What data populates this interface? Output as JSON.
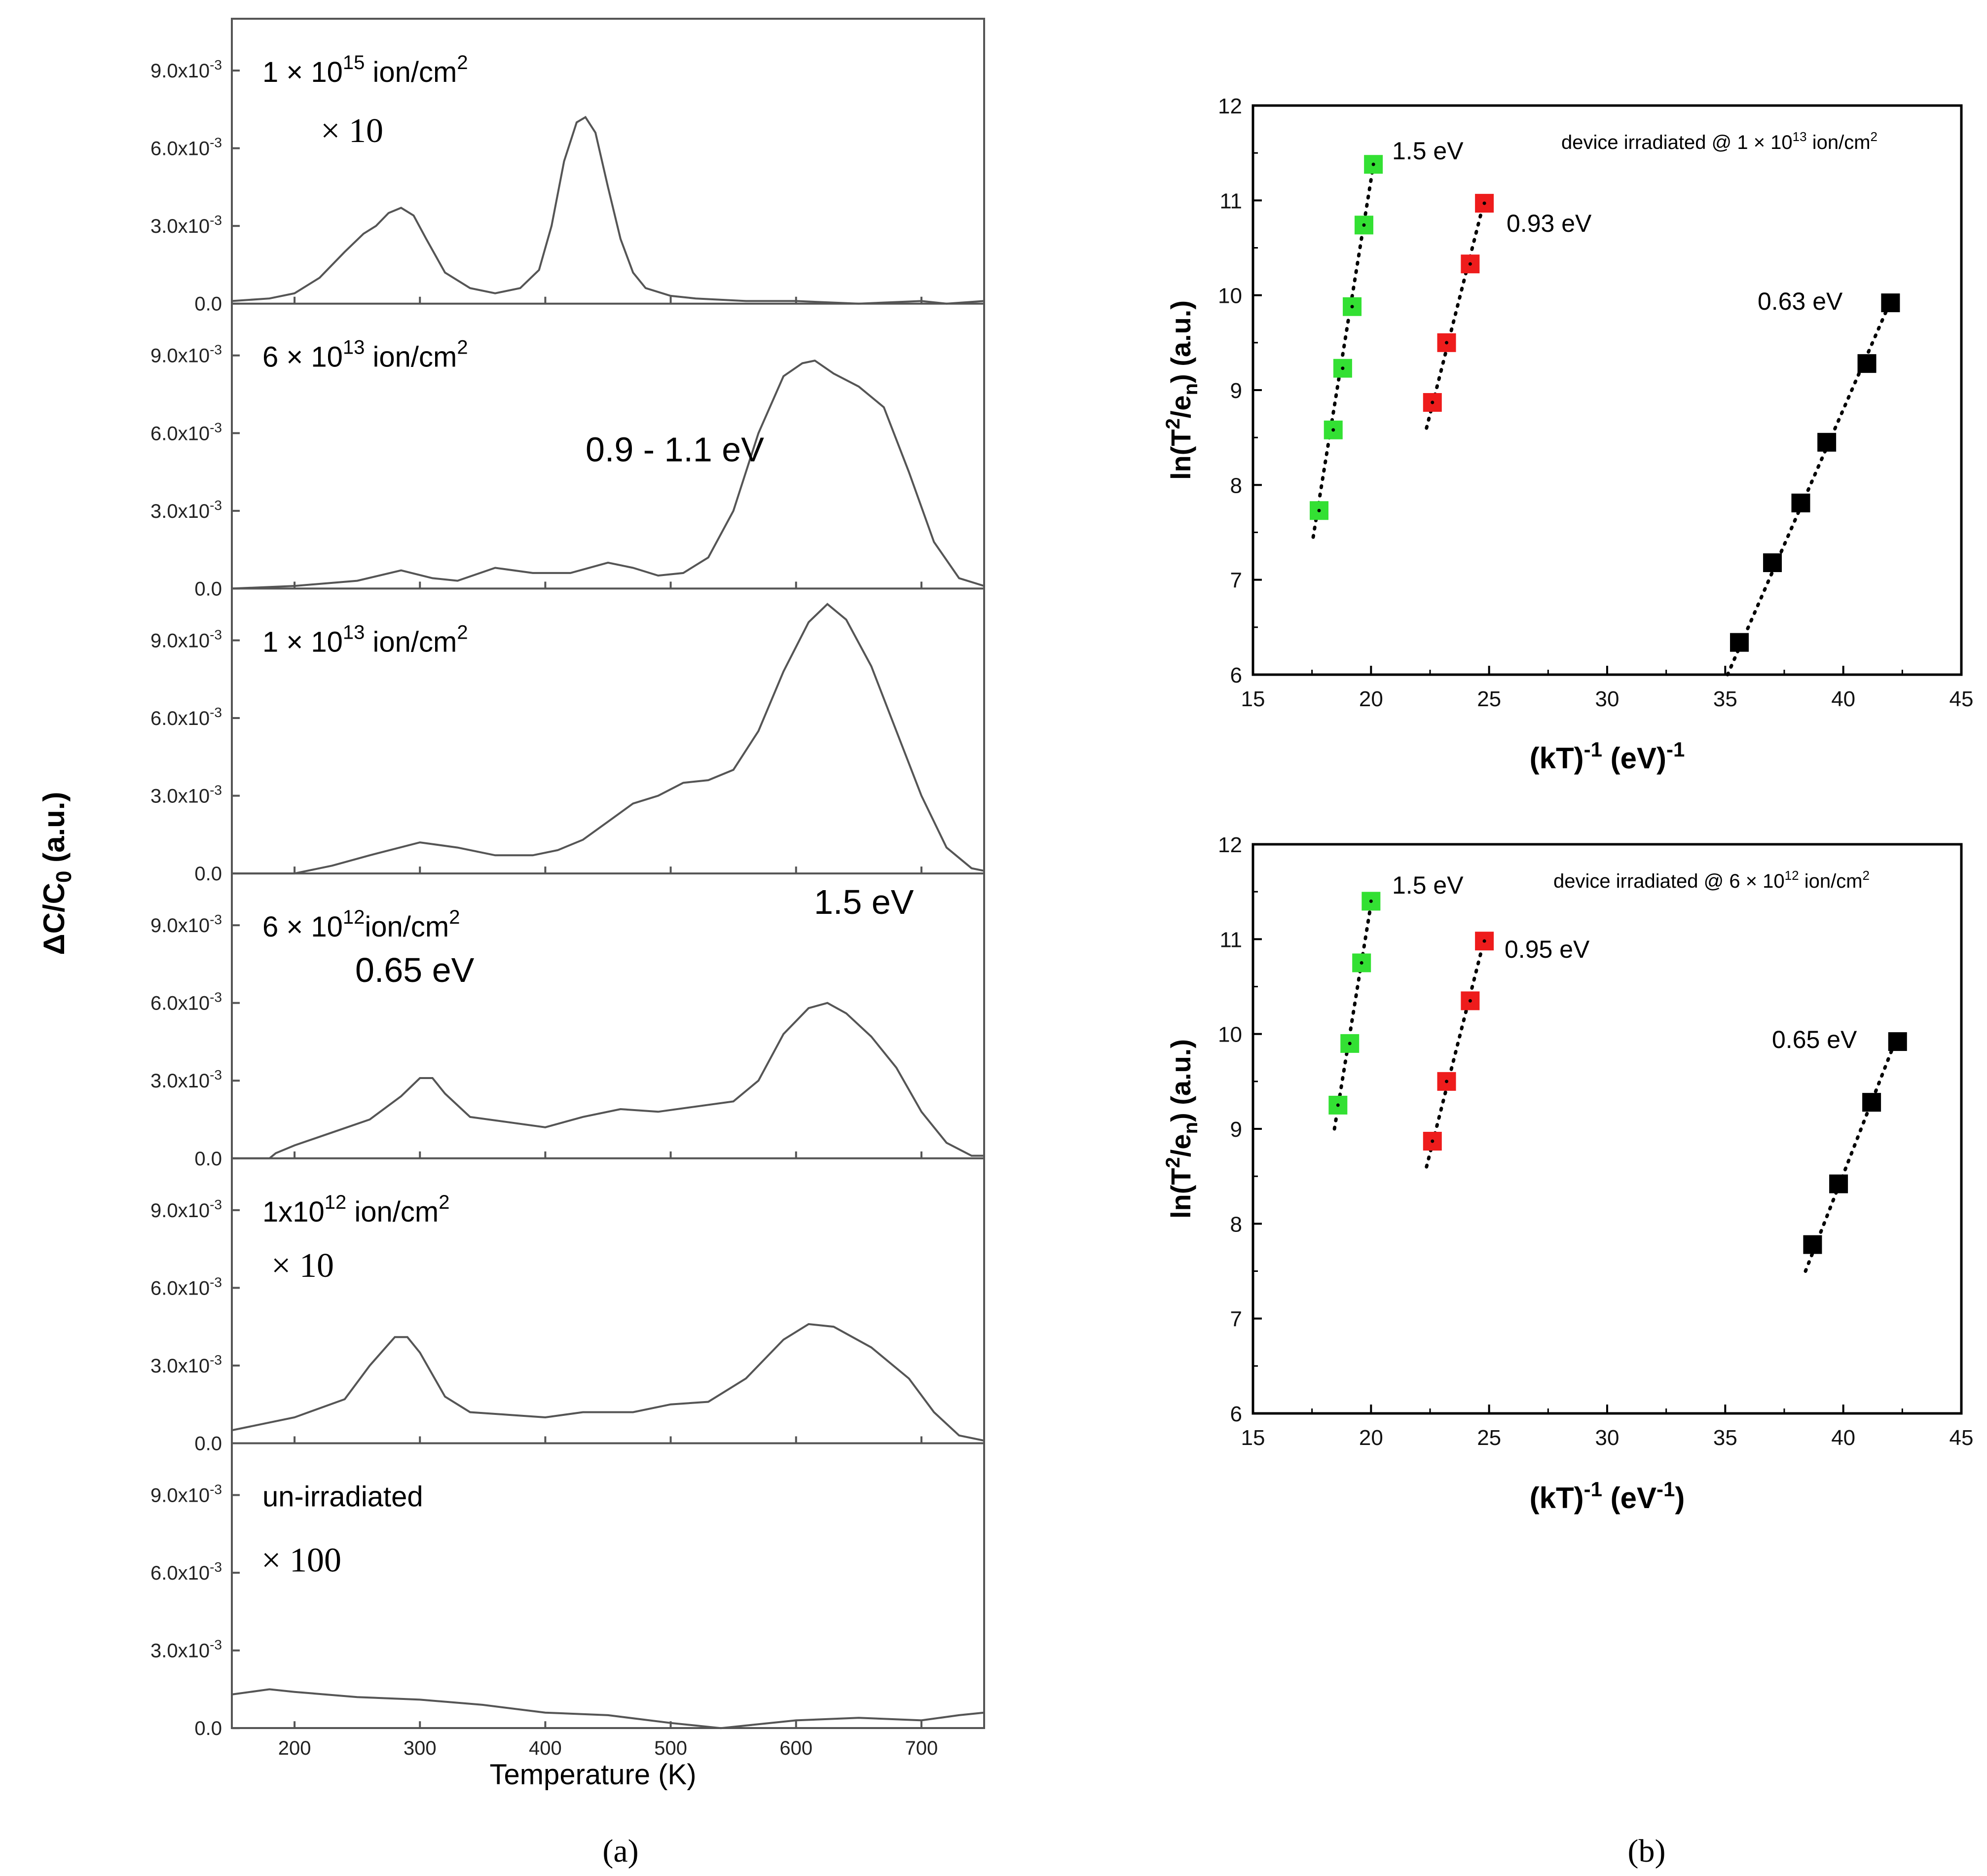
{
  "chart_data": [
    {
      "type": "line",
      "panel": "(a)",
      "xlabel": "Temperature (K)",
      "ylabel": "ΔC/C0 (a.u.)",
      "xlim": [
        150,
        750
      ],
      "ylim": [
        0,
        0.011
      ],
      "x_ticks": [
        "200",
        "300",
        "400",
        "500",
        "600",
        "700"
      ],
      "y_ticks": [
        "0.0",
        "3.0x10-3",
        "6.0x10-3",
        "9.0x10-3"
      ],
      "y_tick_values": [
        0,
        0.003,
        0.006,
        0.009
      ],
      "subplots": [
        {
          "label_parts": [
            "1 × 10",
            "15",
            " ion/cm",
            "2"
          ],
          "annotations": [
            "× 10"
          ],
          "series": [
            {
              "name": "1 × 10^15 ion/cm^2",
              "x": [
                150,
                180,
                200,
                220,
                240,
                255,
                265,
                275,
                285,
                295,
                305,
                320,
                340,
                360,
                380,
                395,
                405,
                415,
                425,
                432,
                440,
                450,
                460,
                470,
                480,
                500,
                520,
                560,
                600,
                650,
                700,
                720,
                750
              ],
              "y": [
                0.0001,
                0.0002,
                0.0004,
                0.001,
                0.002,
                0.0027,
                0.003,
                0.0035,
                0.0037,
                0.0034,
                0.0025,
                0.0012,
                0.0006,
                0.0004,
                0.0006,
                0.0013,
                0.003,
                0.0055,
                0.007,
                0.0072,
                0.0066,
                0.0045,
                0.0025,
                0.0012,
                0.0006,
                0.0003,
                0.0002,
                0.0001,
                0.0001,
                0.0,
                0.0001,
                0.0,
                0.0001
              ]
            }
          ]
        },
        {
          "label_parts": [
            "6 × 10",
            "13",
            " ion/cm",
            "2"
          ],
          "annotations": [
            "0.9 - 1.1 eV"
          ],
          "series": [
            {
              "name": "6 × 10^13 ion/cm^2",
              "x": [
                150,
                200,
                250,
                285,
                310,
                330,
                360,
                390,
                420,
                450,
                470,
                490,
                510,
                530,
                550,
                570,
                590,
                605,
                615,
                630,
                650,
                670,
                690,
                710,
                730,
                750
              ],
              "y": [
                0.0,
                0.0001,
                0.0003,
                0.0007,
                0.0004,
                0.0003,
                0.0008,
                0.0006,
                0.0006,
                0.001,
                0.0008,
                0.0005,
                0.0006,
                0.0012,
                0.003,
                0.006,
                0.0082,
                0.0087,
                0.0088,
                0.0083,
                0.0078,
                0.007,
                0.0045,
                0.0018,
                0.0004,
                0.0001
              ]
            }
          ]
        },
        {
          "label_parts": [
            "1 × 10",
            "13",
            " ion/cm",
            "2"
          ],
          "annotations": [],
          "series": [
            {
              "name": "1 × 10^13 ion/cm^2",
              "x": [
                150,
                200,
                230,
                260,
                300,
                330,
                360,
                390,
                410,
                430,
                450,
                470,
                490,
                510,
                530,
                550,
                570,
                590,
                610,
                625,
                640,
                660,
                680,
                700,
                720,
                740,
                750
              ],
              "y": [
                0.0,
                0.0,
                0.0003,
                0.0007,
                0.0012,
                0.001,
                0.0007,
                0.0007,
                0.0009,
                0.0013,
                0.002,
                0.0027,
                0.003,
                0.0035,
                0.0036,
                0.004,
                0.0055,
                0.0078,
                0.0097,
                0.0104,
                0.0098,
                0.008,
                0.0055,
                0.003,
                0.001,
                0.0002,
                0.0001
              ]
            }
          ]
        },
        {
          "label_parts": [
            "6 × 10",
            "12",
            "ion/cm",
            "2"
          ],
          "annotations": [
            "0.65 eV",
            "1.5 eV"
          ],
          "series": [
            {
              "name": "6 × 10^12 ion/cm^2",
              "x": [
                150,
                180,
                185,
                200,
                230,
                260,
                285,
                300,
                310,
                320,
                340,
                370,
                400,
                430,
                460,
                490,
                520,
                550,
                570,
                590,
                610,
                625,
                640,
                660,
                680,
                700,
                720,
                740,
                750
              ],
              "y": [
                0.0,
                0.0,
                0.0002,
                0.0005,
                0.001,
                0.0015,
                0.0024,
                0.0031,
                0.0031,
                0.0025,
                0.0016,
                0.0014,
                0.0012,
                0.0016,
                0.0019,
                0.0018,
                0.002,
                0.0022,
                0.003,
                0.0048,
                0.0058,
                0.006,
                0.0056,
                0.0047,
                0.0035,
                0.0018,
                0.0006,
                0.0001,
                0.0001
              ]
            }
          ]
        },
        {
          "label_parts": [
            "1x10",
            "12",
            " ion/cm",
            "2"
          ],
          "annotations": [
            "× 10"
          ],
          "series": [
            {
              "name": "1x10^12 ion/cm^2",
              "x": [
                150,
                200,
                240,
                260,
                280,
                290,
                300,
                320,
                340,
                370,
                400,
                430,
                470,
                500,
                530,
                560,
                590,
                610,
                630,
                660,
                690,
                710,
                730,
                750
              ],
              "y": [
                0.0005,
                0.001,
                0.0017,
                0.003,
                0.0041,
                0.0041,
                0.0035,
                0.0018,
                0.0012,
                0.0011,
                0.001,
                0.0012,
                0.0012,
                0.0015,
                0.0016,
                0.0025,
                0.004,
                0.0046,
                0.0045,
                0.0037,
                0.0025,
                0.0012,
                0.0003,
                0.0001
              ]
            }
          ]
        },
        {
          "label_parts": [
            "un-irradiated"
          ],
          "annotations": [
            "× 100"
          ],
          "series": [
            {
              "name": "un-irradiated",
              "x": [
                150,
                180,
                200,
                250,
                300,
                350,
                400,
                450,
                500,
                520,
                540,
                560,
                600,
                650,
                700,
                730,
                750
              ],
              "y": [
                0.0013,
                0.0015,
                0.0014,
                0.0012,
                0.0011,
                0.0009,
                0.0006,
                0.0005,
                0.0002,
                0.0001,
                0.0,
                0.0001,
                0.0003,
                0.0004,
                0.0003,
                0.0005,
                0.0006
              ]
            }
          ]
        }
      ]
    },
    {
      "type": "scatter",
      "panel": "(b)",
      "title": [
        "device irradiated @ 1 × 10",
        "13",
        " ion/cm",
        "2"
      ],
      "xlabel": [
        "(kT)",
        "-1",
        " (eV)",
        "-1"
      ],
      "ylabel": [
        "ln(T",
        "2",
        "/e",
        "n",
        ") (a.u.)"
      ],
      "xlim": [
        15,
        45
      ],
      "ylim": [
        6,
        12
      ],
      "x_ticks": [
        "15",
        "20",
        "25",
        "30",
        "35",
        "40",
        "45"
      ],
      "y_ticks": [
        "6",
        "7",
        "8",
        "9",
        "10",
        "11",
        "12"
      ],
      "series": [
        {
          "name": "1.5 eV",
          "color": "#33e033",
          "x": [
            17.8,
            18.4,
            18.8,
            19.2,
            19.7,
            20.1
          ],
          "y": [
            7.73,
            8.58,
            9.23,
            9.88,
            10.74,
            11.38
          ]
        },
        {
          "name": "0.93 eV",
          "color": "#ee1c1c",
          "x": [
            22.6,
            23.2,
            24.2,
            24.8
          ],
          "y": [
            8.87,
            9.5,
            10.33,
            10.97
          ]
        },
        {
          "name": "0.63 eV",
          "color": "#000000",
          "x": [
            35.6,
            37.0,
            38.2,
            39.3,
            41.0,
            42.0
          ],
          "y": [
            6.34,
            7.18,
            7.81,
            8.45,
            9.28,
            9.92
          ]
        }
      ]
    },
    {
      "type": "scatter",
      "panel": "(b)",
      "title": [
        "device irradiated @ 6 × 10",
        "12",
        " ion/cm",
        "2"
      ],
      "xlabel": [
        "(kT)",
        "-1",
        " (eV",
        "-1",
        ")"
      ],
      "ylabel": [
        "ln(T",
        "2",
        "/e",
        "n",
        ") (a.u.)"
      ],
      "xlim": [
        15,
        45
      ],
      "ylim": [
        6,
        12
      ],
      "x_ticks": [
        "15",
        "20",
        "25",
        "30",
        "35",
        "40",
        "45"
      ],
      "y_ticks": [
        "6",
        "7",
        "8",
        "9",
        "10",
        "11",
        "12"
      ],
      "series": [
        {
          "name": "1.5 eV",
          "color": "#33e033",
          "x": [
            18.6,
            19.1,
            19.6,
            20.0
          ],
          "y": [
            9.25,
            9.9,
            10.75,
            11.4
          ]
        },
        {
          "name": "0.95 eV",
          "color": "#ee1c1c",
          "x": [
            22.6,
            23.2,
            24.2,
            24.8
          ],
          "y": [
            8.87,
            9.5,
            10.35,
            10.98
          ]
        },
        {
          "name": "0.65 eV",
          "color": "#000000",
          "x": [
            38.7,
            39.8,
            41.2,
            42.3
          ],
          "y": [
            7.78,
            8.42,
            9.28,
            9.92
          ]
        }
      ]
    }
  ],
  "captions": {
    "a": "(a)",
    "b": "(b)"
  }
}
